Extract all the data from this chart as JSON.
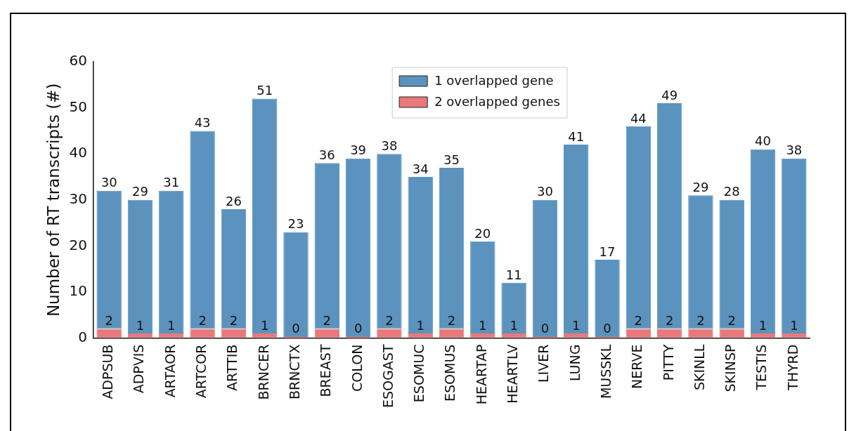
{
  "chart_data": {
    "type": "bar",
    "ylabel": "Number of RT transcripts (#)",
    "categories": [
      "ADPSUB",
      "ADPVIS",
      "ARTAOR",
      "ARTCOR",
      "ARTTIB",
      "BRNCER",
      "BRNCTX",
      "BREAST",
      "COLON",
      "ESOGAST",
      "ESOMUC",
      "ESOMUS",
      "HEARTAP",
      "HEARTLV",
      "LIVER",
      "LUNG",
      "MUSSKL",
      "NERVE",
      "PITTY",
      "SKINLL",
      "SKINSP",
      "TESTIS",
      "THYRD"
    ],
    "series": [
      {
        "name": "2 overlapped genes",
        "color": "#e8787a",
        "values": [
          2,
          1,
          1,
          2,
          2,
          1,
          0,
          2,
          0,
          2,
          1,
          2,
          1,
          1,
          0,
          1,
          0,
          2,
          2,
          2,
          2,
          1,
          1
        ]
      },
      {
        "name": "1 overlapped gene",
        "color": "#5b93be",
        "values": [
          30,
          29,
          31,
          43,
          26,
          51,
          23,
          36,
          39,
          38,
          34,
          35,
          20,
          11,
          30,
          41,
          17,
          44,
          49,
          29,
          28,
          40,
          38
        ]
      }
    ],
    "stacked": true,
    "ylim": [
      0,
      60
    ],
    "yticks": [
      0,
      10,
      20,
      30,
      40,
      50,
      60
    ],
    "data_labels": true,
    "grid": false,
    "legend": "top"
  }
}
